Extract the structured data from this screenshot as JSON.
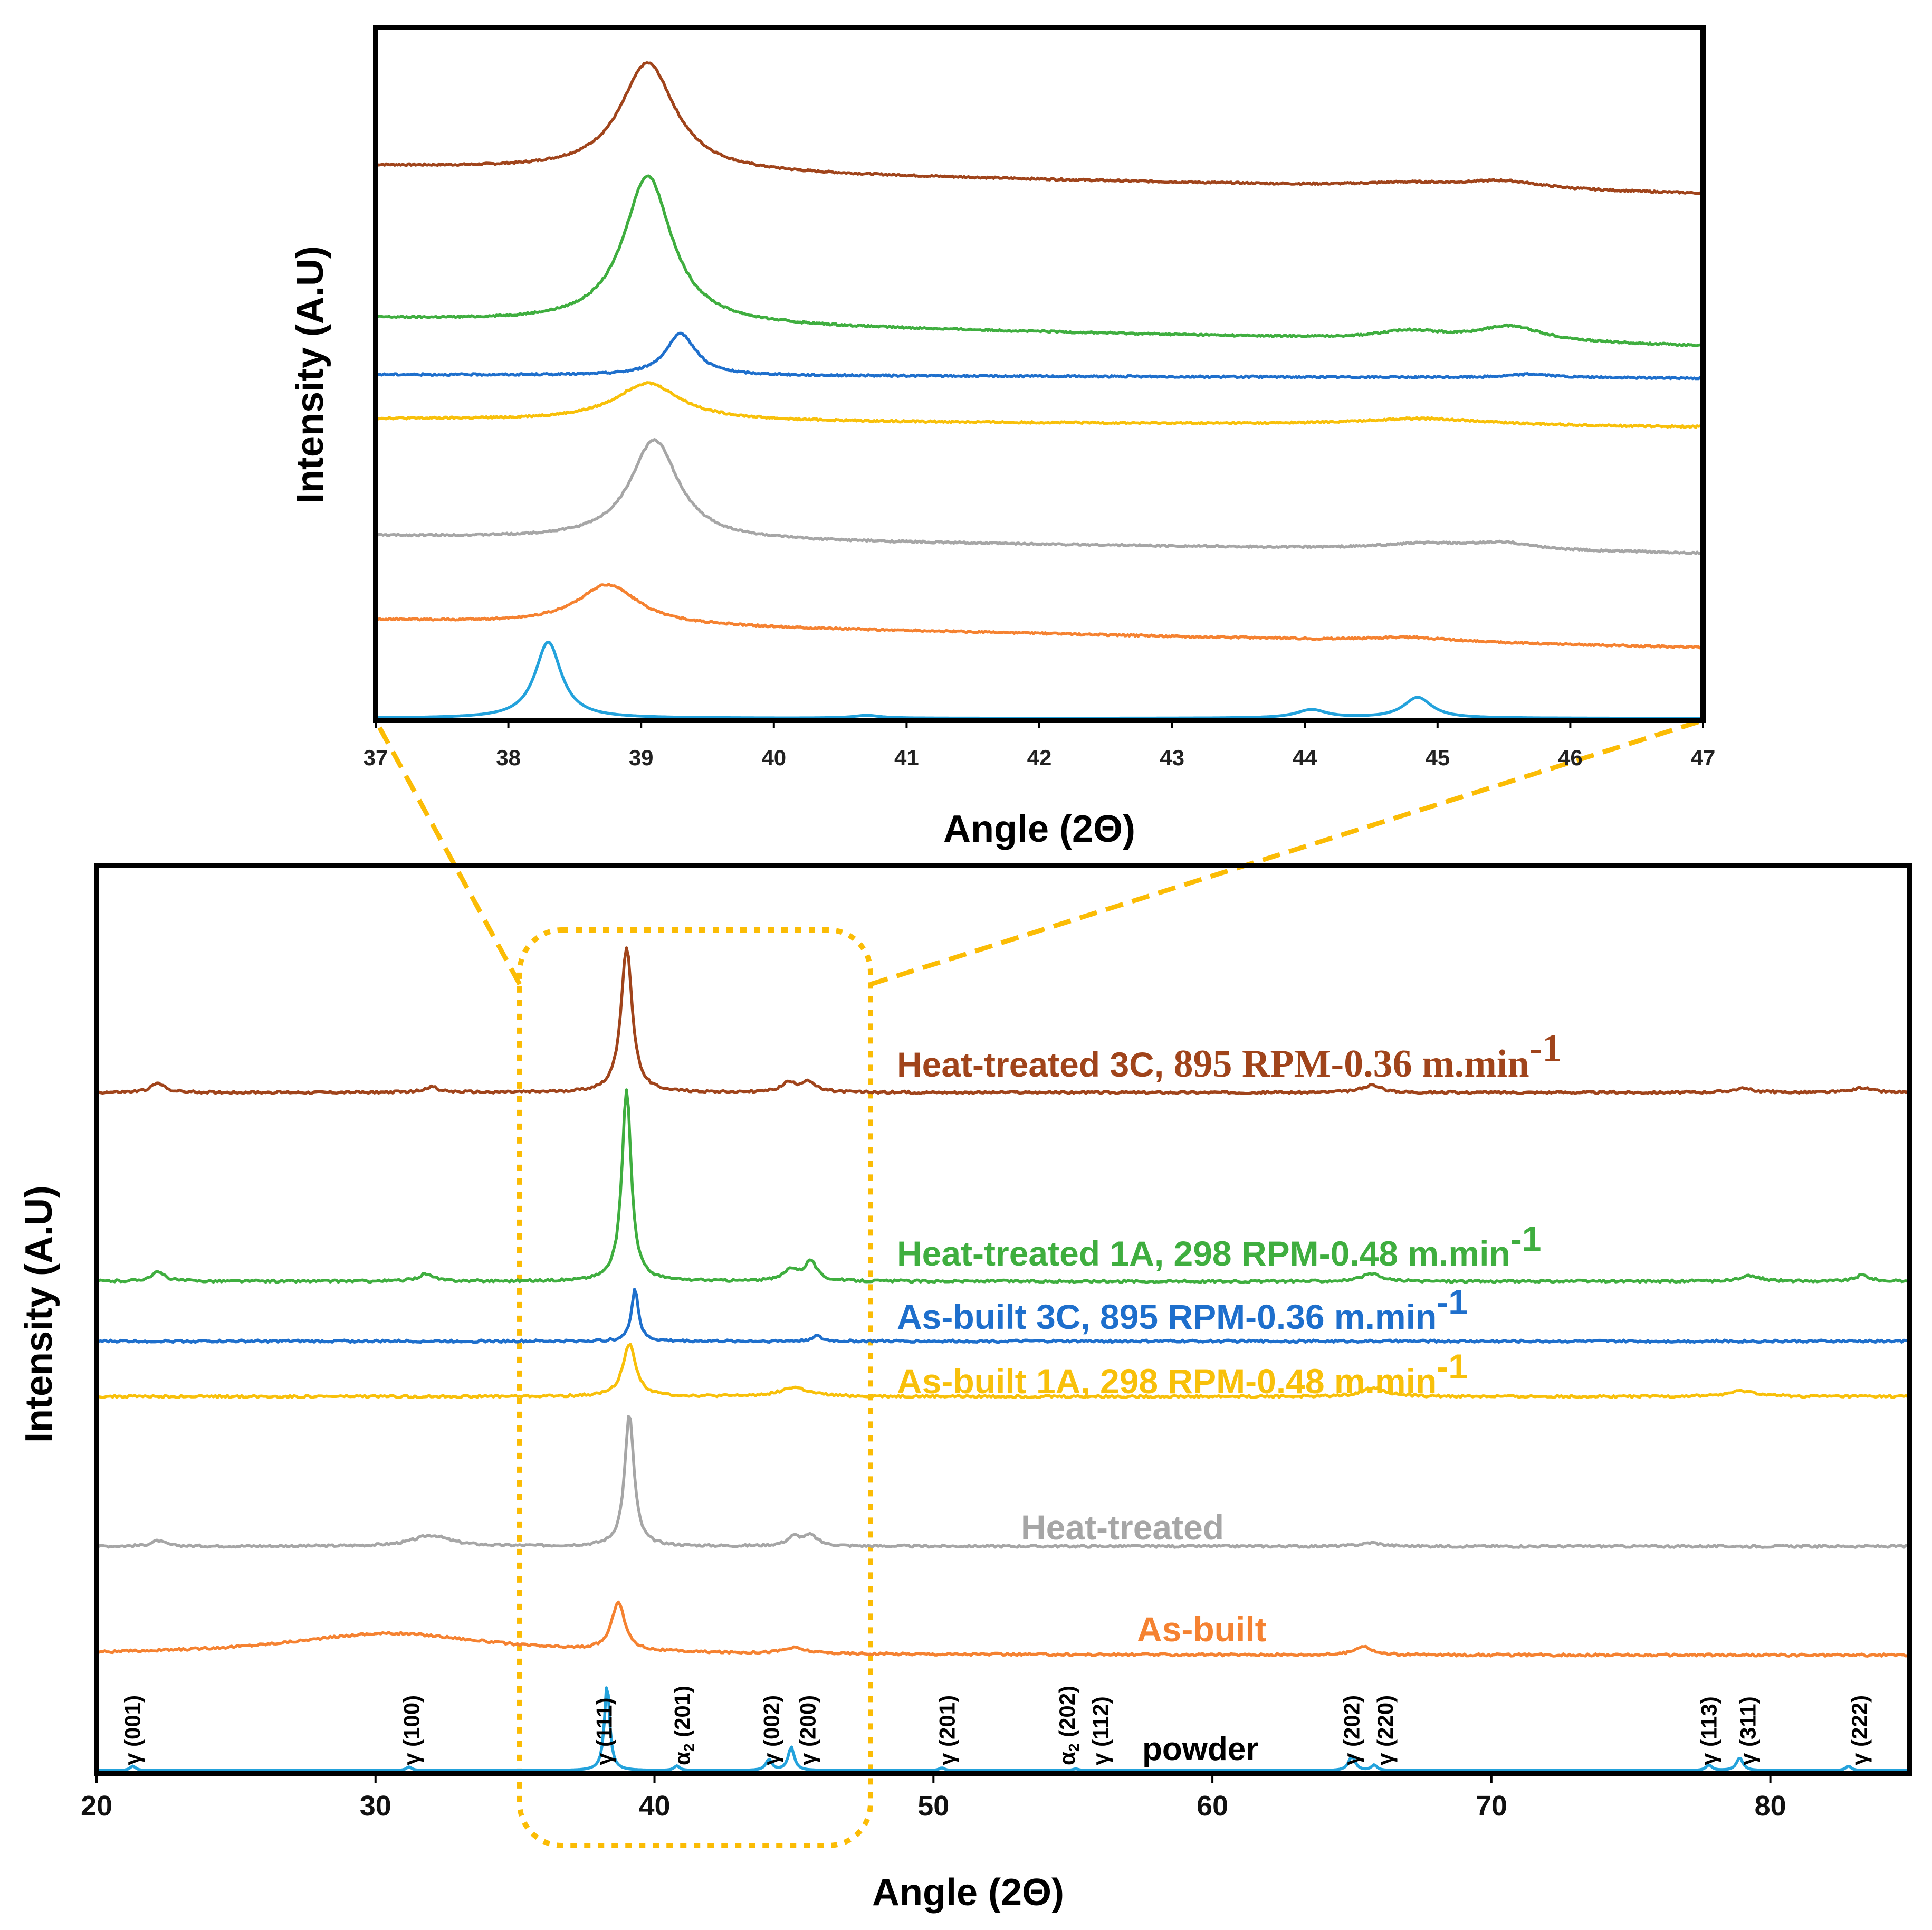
{
  "colors": {
    "ht_3c": "#A0441B",
    "ht_1a": "#3FAE3F",
    "ab_3c": "#1E6FCC",
    "ab_1a": "#F8C00A",
    "heat_treated": "#A6A6A6",
    "as_built": "#F58231",
    "powder": "#23A2DC",
    "zoom": "#FBBC05"
  },
  "chart_data": [
    {
      "id": "inset",
      "type": "line",
      "title": "",
      "xlabel": "Angle (2Θ)",
      "ylabel": "Intensity (A.U)",
      "xlim": [
        37,
        47
      ],
      "ylim": [
        0,
        1
      ],
      "xticks": [
        37,
        38,
        39,
        40,
        41,
        42,
        43,
        44,
        45,
        46,
        47
      ],
      "grid": false,
      "series": [
        {
          "key": "ht_3c",
          "name": "Heat-treated 3C, 895 RPM-0.36 m.min-1",
          "baseline": 0.8,
          "slope": 0.004,
          "peaks": [
            [
              39.05,
              0.157,
              0.25
            ],
            [
              44.8,
              0.006,
              0.5
            ],
            [
              45.5,
              0.011,
              0.35
            ]
          ]
        },
        {
          "key": "ht_1a",
          "name": "Heat-treated 1A, 298 RPM-0.48 m.min-1",
          "baseline": 0.58,
          "slope": 0.004,
          "peaks": [
            [
              39.05,
              0.214,
              0.22
            ],
            [
              44.8,
              0.012,
              0.3
            ],
            [
              45.55,
              0.022,
              0.3
            ]
          ]
        },
        {
          "key": "ab_3c",
          "name": "As-built 3C, 895 RPM-0.36 m.min-1",
          "baseline": 0.499,
          "slope": 0.0005,
          "peaks": [
            [
              39.3,
              0.06,
              0.14
            ],
            [
              45.7,
              0.005,
              0.2
            ]
          ]
        },
        {
          "key": "ab_1a",
          "name": "As-built 1A, 298 RPM-0.48 m.min-1",
          "baseline": 0.435,
          "slope": 0.0012,
          "peaks": [
            [
              39.05,
              0.054,
              0.3
            ],
            [
              44.9,
              0.01,
              0.6
            ]
          ]
        },
        {
          "key": "heat_treated",
          "name": "Heat-treated",
          "baseline": 0.266,
          "slope": 0.0025,
          "peaks": [
            [
              39.1,
              0.144,
              0.22
            ],
            [
              44.9,
              0.008,
              0.4
            ],
            [
              45.5,
              0.01,
              0.3
            ]
          ]
        },
        {
          "key": "as_built",
          "name": "As-built",
          "baseline": 0.145,
          "slope": 0.004,
          "peaks": [
            [
              38.75,
              0.058,
              0.28
            ],
            [
              44.8,
              0.006,
              0.4
            ]
          ]
        },
        {
          "key": "powder",
          "name": "powder",
          "baseline": 0.003,
          "slope": 0.0,
          "peaks": [
            [
              38.3,
              0.11,
              0.12
            ],
            [
              40.7,
              0.004,
              0.12
            ],
            [
              44.05,
              0.012,
              0.14
            ],
            [
              44.85,
              0.03,
              0.13
            ]
          ]
        }
      ]
    },
    {
      "id": "main",
      "type": "line",
      "title": "",
      "xlabel": "Angle (2Θ)",
      "ylabel": "Intensity (A.U)",
      "xlim": [
        20,
        85
      ],
      "ylim": [
        0,
        1
      ],
      "xticks": [
        20,
        30,
        40,
        50,
        60,
        70,
        80
      ],
      "grid": false,
      "series": [
        {
          "key": "ht_3c",
          "name": "Heat-treated 3C, 895 RPM-0.36 m.min-1",
          "baseline": 0.75,
          "slope": 0.0,
          "peaks": [
            [
              22.2,
              0.01,
              0.3
            ],
            [
              32.0,
              0.006,
              0.3
            ],
            [
              39.0,
              0.16,
              0.24
            ],
            [
              44.8,
              0.01,
              0.3
            ],
            [
              45.5,
              0.012,
              0.3
            ],
            [
              65.7,
              0.008,
              0.4
            ],
            [
              79.0,
              0.004,
              0.5
            ],
            [
              83.3,
              0.005,
              0.4
            ]
          ]
        },
        {
          "key": "ht_1a",
          "name": "Heat-treated 1A, 298 RPM-0.48 m.min-1",
          "baseline": 0.542,
          "slope": 0.0,
          "peaks": [
            [
              22.2,
              0.01,
              0.3
            ],
            [
              31.8,
              0.008,
              0.3
            ],
            [
              39.0,
              0.212,
              0.2
            ],
            [
              44.9,
              0.013,
              0.3
            ],
            [
              45.6,
              0.022,
              0.25
            ],
            [
              65.7,
              0.008,
              0.4
            ],
            [
              79.3,
              0.006,
              0.4
            ],
            [
              83.3,
              0.007,
              0.3
            ]
          ]
        },
        {
          "key": "ab_3c",
          "name": "As-built 3C, 895 RPM-0.36 m.min-1",
          "baseline": 0.476,
          "slope": 0.0,
          "peaks": [
            [
              39.3,
              0.058,
              0.15
            ],
            [
              45.8,
              0.006,
              0.2
            ]
          ]
        },
        {
          "key": "ab_1a",
          "name": "As-built 1A, 298 RPM-0.48 m.min-1",
          "baseline": 0.415,
          "slope": 0.0,
          "peaks": [
            [
              39.1,
              0.058,
              0.28
            ],
            [
              45.0,
              0.01,
              0.6
            ],
            [
              65.8,
              0.01,
              0.5
            ],
            [
              79.0,
              0.006,
              0.6
            ]
          ]
        },
        {
          "key": "heat_treated",
          "name": "Heat-treated",
          "baseline": 0.25,
          "slope": 0.0,
          "peaks": [
            [
              22.2,
              0.006,
              0.3
            ],
            [
              32.0,
              0.012,
              0.8
            ],
            [
              39.1,
              0.146,
              0.2
            ],
            [
              45.0,
              0.01,
              0.3
            ],
            [
              45.6,
              0.011,
              0.3
            ],
            [
              65.7,
              0.004,
              0.4
            ]
          ]
        },
        {
          "key": "as_built",
          "name": "As-built",
          "baseline": 0.13,
          "slope": 0.0,
          "peaks": [
            [
              30.5,
              0.024,
              4.5
            ],
            [
              38.7,
              0.054,
              0.28
            ],
            [
              45.0,
              0.006,
              0.5
            ],
            [
              65.4,
              0.01,
              0.35
            ]
          ]
        },
        {
          "key": "powder",
          "name": "powder",
          "baseline": 0.003,
          "slope": 0.0,
          "peaks": [
            [
              21.3,
              0.005,
              0.12
            ],
            [
              31.2,
              0.004,
              0.12
            ],
            [
              38.3,
              0.097,
              0.11
            ],
            [
              40.8,
              0.005,
              0.12
            ],
            [
              44.1,
              0.012,
              0.13
            ],
            [
              44.9,
              0.026,
              0.13
            ],
            [
              50.3,
              0.003,
              0.12
            ],
            [
              55.1,
              0.002,
              0.12
            ],
            [
              65.0,
              0.016,
              0.14
            ],
            [
              65.8,
              0.006,
              0.12
            ],
            [
              77.8,
              0.006,
              0.13
            ],
            [
              78.9,
              0.014,
              0.14
            ],
            [
              82.8,
              0.005,
              0.12
            ]
          ]
        }
      ],
      "peak_labels": [
        {
          "x": 21.3,
          "text": "γ (001)"
        },
        {
          "x": 31.3,
          "text": "γ (100)"
        },
        {
          "x": 38.2,
          "text": "γ (111)"
        },
        {
          "x": 41.0,
          "text": "α2 (201)"
        },
        {
          "x": 44.2,
          "text": "γ (002)"
        },
        {
          "x": 45.5,
          "text": "γ (200)"
        },
        {
          "x": 50.5,
          "text": "γ (201)"
        },
        {
          "x": 54.8,
          "text": "α2 (202)"
        },
        {
          "x": 56.0,
          "text": "γ (112)"
        },
        {
          "x": 65.0,
          "text": "γ (202)"
        },
        {
          "x": 66.2,
          "text": "γ (220)"
        },
        {
          "x": 77.8,
          "text": "γ (113)"
        },
        {
          "x": 79.2,
          "text": "γ (311)"
        },
        {
          "x": 83.2,
          "text": "γ (222)"
        }
      ]
    }
  ],
  "labels": {
    "ht_3c_a": "Heat-treated 3C, ",
    "ht_3c_b": "895 RPM-0.36 m.min",
    "ht_1a": "Heat-treated 1A, 298 RPM-0.48 m.min",
    "ab_3c": "As-built 3C, 895 RPM-0.36 m.min",
    "ab_1a": "As-built 1A, 298 RPM-0.48 m.min",
    "exp": "-1",
    "heat_treated": "Heat-treated",
    "as_built": "As-built",
    "powder": "powder",
    "alpha": "α",
    "alpha_sub": "2"
  }
}
